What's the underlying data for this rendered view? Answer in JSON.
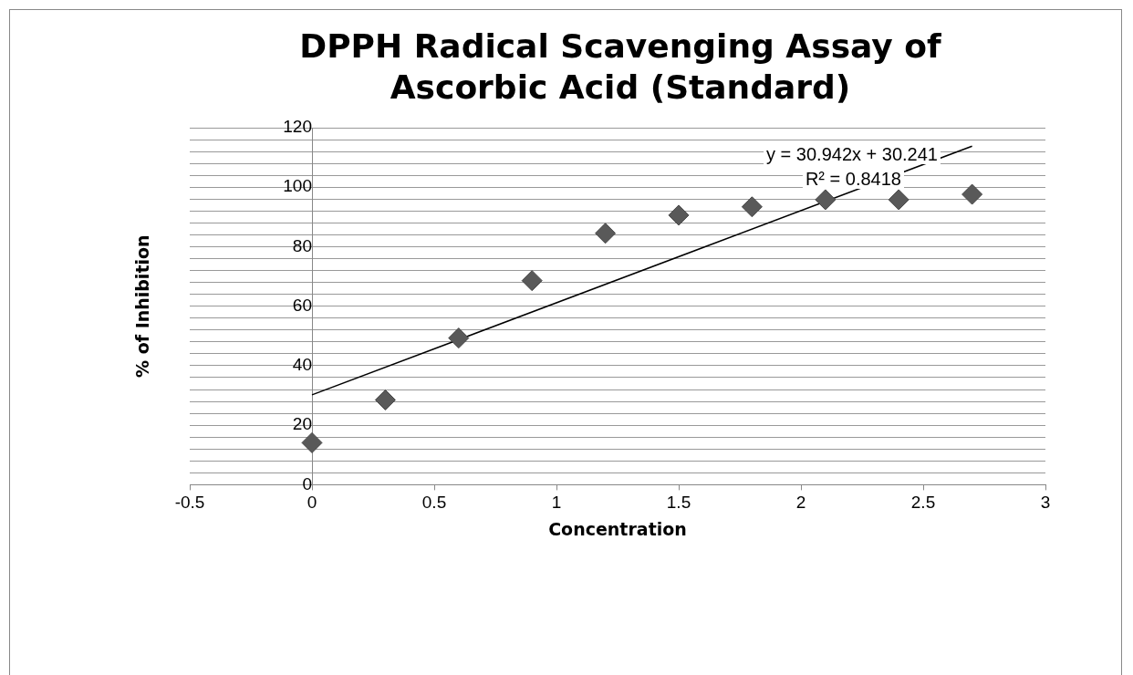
{
  "chart_data": {
    "type": "scatter",
    "title": "DPPH Radical Scavenging Assay of Ascorbic Acid (Standard)",
    "xlabel": "Concentration",
    "ylabel": "% of Inhibition",
    "xlim": [
      -0.5,
      3
    ],
    "xticks": [
      -0.5,
      0,
      0.5,
      1,
      1.5,
      2,
      2.5,
      3
    ],
    "ylim": [
      0,
      120
    ],
    "yticks": [
      0,
      {
        "value": 4,
        "label": null
      },
      {
        "value": 8,
        "label": null
      },
      {
        "value": 12,
        "label": null
      },
      {
        "value": 16,
        "label": null
      },
      20,
      {
        "value": 24,
        "label": null
      },
      {
        "value": 28,
        "label": null
      },
      {
        "value": 32,
        "label": null
      },
      {
        "value": 36,
        "label": null
      },
      40,
      {
        "value": 44,
        "label": null
      },
      {
        "value": 48,
        "label": null
      },
      {
        "value": 52,
        "label": null
      },
      {
        "value": 56,
        "label": null
      },
      60,
      {
        "value": 64,
        "label": null
      },
      {
        "value": 68,
        "label": null
      },
      {
        "value": 72,
        "label": null
      },
      {
        "value": 76,
        "label": null
      },
      80,
      {
        "value": 84,
        "label": null
      },
      {
        "value": 88,
        "label": null
      },
      {
        "value": 92,
        "label": null
      },
      {
        "value": 96,
        "label": null
      },
      100,
      {
        "value": 104,
        "label": null
      },
      {
        "value": 108,
        "label": null
      },
      {
        "value": 112,
        "label": null
      },
      {
        "value": 116,
        "label": null
      },
      120
    ],
    "grid": "y",
    "legend": false,
    "marker": "diamond",
    "series": [
      {
        "type": "scatter",
        "color": "#595959",
        "x": [
          0,
          0.3,
          0.6,
          0.9,
          1.2,
          1.5,
          1.8,
          2.1,
          2.4,
          2.7
        ],
        "values": [
          14.1,
          28.5,
          49.3,
          68.6,
          84.5,
          90.6,
          93.4,
          95.8,
          95.8,
          97.6
        ]
      },
      {
        "type": "line",
        "color": "#000000",
        "marker": "none",
        "x": [
          0,
          2.7
        ],
        "values": [
          30.2,
          113.8
        ]
      }
    ],
    "annotations": [
      "y = 30.942x + 30.241",
      "R² = 0.8418"
    ]
  }
}
